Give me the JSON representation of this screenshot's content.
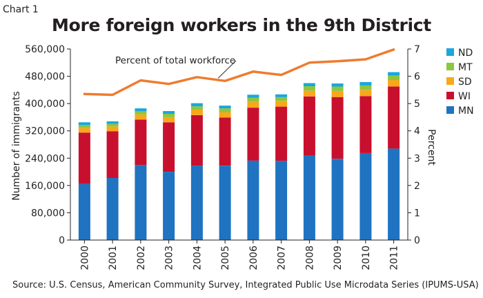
{
  "header": {
    "chart_label": "Chart 1",
    "title": "More foreign workers in the 9th District"
  },
  "footer": {
    "source": "Source: U.S. Census, American Community Survey, Integrated Public Use Microdata Series (IPUMS-USA)"
  },
  "colors": {
    "ND": "#1aa6de",
    "MT": "#8dc63f",
    "SD": "#f7a81b",
    "WI": "#c8102e",
    "MN": "#1f73c1",
    "line": "#ef7b2f"
  },
  "chart_data": {
    "type": "bar",
    "stacked": true,
    "categories": [
      "2000",
      "2001",
      "2002",
      "2003",
      "2004",
      "2005",
      "2006",
      "2007",
      "2008",
      "2009",
      "2010",
      "2011"
    ],
    "series": [
      {
        "name": "MN",
        "values": [
          165000,
          182000,
          220000,
          200000,
          218000,
          218000,
          233000,
          232000,
          248000,
          238000,
          255000,
          268000
        ]
      },
      {
        "name": "WI",
        "values": [
          150000,
          137000,
          133000,
          145000,
          148000,
          141000,
          155000,
          159000,
          173000,
          181000,
          167000,
          182000
        ]
      },
      {
        "name": "SD",
        "values": [
          14000,
          14000,
          15000,
          15000,
          16000,
          16000,
          17000,
          17000,
          17000,
          18000,
          18000,
          19000
        ]
      },
      {
        "name": "MT",
        "values": [
          8000,
          8000,
          10000,
          10000,
          10000,
          11000,
          12000,
          11000,
          13000,
          13000,
          13000,
          13000
        ]
      },
      {
        "name": "ND",
        "values": [
          8000,
          7000,
          8000,
          8000,
          9000,
          8000,
          9000,
          8000,
          9000,
          9000,
          10000,
          10000
        ]
      }
    ],
    "line": {
      "name": "Percent of total workforce",
      "axis": "right",
      "values": [
        5.35,
        5.32,
        5.85,
        5.72,
        5.97,
        5.83,
        6.17,
        6.05,
        6.5,
        6.55,
        6.62,
        6.98
      ]
    },
    "ylabel": "Number of immigrants",
    "ylim": [
      0,
      560000
    ],
    "yticks": [
      "0",
      "80,000",
      "160,000",
      "240,000",
      "320,000",
      "400,000",
      "480,000",
      "560,000"
    ],
    "y2label": "Percent",
    "y2lim": [
      0,
      7
    ],
    "y2ticks": [
      "0",
      "1",
      "2",
      "3",
      "4",
      "5",
      "6",
      "7"
    ],
    "legend_order": [
      "ND",
      "MT",
      "SD",
      "WI",
      "MN"
    ],
    "legend_position": "right",
    "grid": false
  }
}
